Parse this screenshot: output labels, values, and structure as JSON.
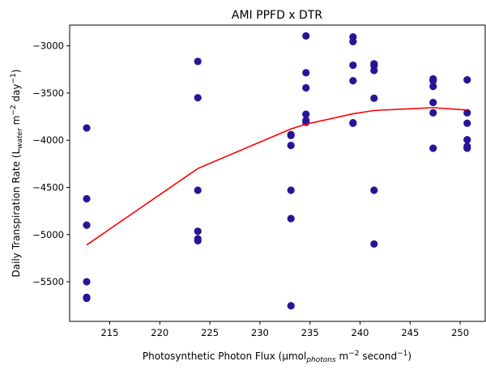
{
  "chart_data": {
    "type": "scatter",
    "title": "AMI PPFD x DTR",
    "xlabel": {
      "main": "Photosynthetic Photon Flux (µmol",
      "sub": "photons",
      "tail": " m",
      "sup1": "−2",
      "tail2": " second",
      "sup2": "−1",
      "close": ")"
    },
    "ylabel": {
      "main": "Daily Transpiration Rate (L",
      "sub": "water",
      "tail": " m",
      "sup1": "−2",
      "tail2": " day",
      "sup2": "−1",
      "close": ")"
    },
    "xlim": [
      211,
      252.5
    ],
    "ylim": [
      -5920,
      -2780
    ],
    "xticks": [
      215,
      220,
      225,
      230,
      235,
      240,
      245,
      250
    ],
    "xtick_labels": [
      "215",
      "220",
      "225",
      "230",
      "235",
      "240",
      "245",
      "250"
    ],
    "yticks": [
      -5500,
      -5000,
      -4500,
      -4000,
      -3500,
      -3000
    ],
    "ytick_labels": [
      "−5500",
      "−5000",
      "−4500",
      "−4000",
      "−3500",
      "−3000"
    ],
    "grid": false,
    "scatter_color": "#2a1496",
    "line_color": "#ff0000",
    "series": [
      {
        "kind": "points",
        "points": [
          [
            212.7,
            -3870
          ],
          [
            212.7,
            -4620
          ],
          [
            212.7,
            -4900
          ],
          [
            212.7,
            -5500
          ],
          [
            212.7,
            -5665
          ],
          [
            212.7,
            -5675
          ],
          [
            223.8,
            -3165
          ],
          [
            223.8,
            -3550
          ],
          [
            223.8,
            -4530
          ],
          [
            223.8,
            -4965
          ],
          [
            223.8,
            -5045
          ],
          [
            223.8,
            -5065
          ],
          [
            233.1,
            -3940
          ],
          [
            233.1,
            -3950
          ],
          [
            233.1,
            -4055
          ],
          [
            233.1,
            -4530
          ],
          [
            233.1,
            -4830
          ],
          [
            233.1,
            -5755
          ],
          [
            234.6,
            -2895
          ],
          [
            234.6,
            -3285
          ],
          [
            234.6,
            -3445
          ],
          [
            234.6,
            -3725
          ],
          [
            234.6,
            -3790
          ],
          [
            234.6,
            -3810
          ],
          [
            239.3,
            -2905
          ],
          [
            239.3,
            -2955
          ],
          [
            239.3,
            -3205
          ],
          [
            239.3,
            -3370
          ],
          [
            239.3,
            -3815
          ],
          [
            239.3,
            -3820
          ],
          [
            241.4,
            -3190
          ],
          [
            241.4,
            -3210
          ],
          [
            241.4,
            -3260
          ],
          [
            241.4,
            -3555
          ],
          [
            241.4,
            -4530
          ],
          [
            241.4,
            -5100
          ],
          [
            247.3,
            -3350
          ],
          [
            247.3,
            -3370
          ],
          [
            247.3,
            -3430
          ],
          [
            247.3,
            -3600
          ],
          [
            247.3,
            -3710
          ],
          [
            247.3,
            -4085
          ],
          [
            250.7,
            -3360
          ],
          [
            250.7,
            -3710
          ],
          [
            250.7,
            -3820
          ],
          [
            250.7,
            -3995
          ],
          [
            250.7,
            -4065
          ],
          [
            250.7,
            -4085
          ]
        ]
      },
      {
        "kind": "line",
        "points": [
          [
            212.7,
            -5110
          ],
          [
            223.8,
            -4300
          ],
          [
            233.1,
            -3880
          ],
          [
            234.6,
            -3830
          ],
          [
            239.3,
            -3720
          ],
          [
            241.4,
            -3685
          ],
          [
            247.3,
            -3655
          ],
          [
            250.7,
            -3680
          ]
        ]
      }
    ]
  }
}
